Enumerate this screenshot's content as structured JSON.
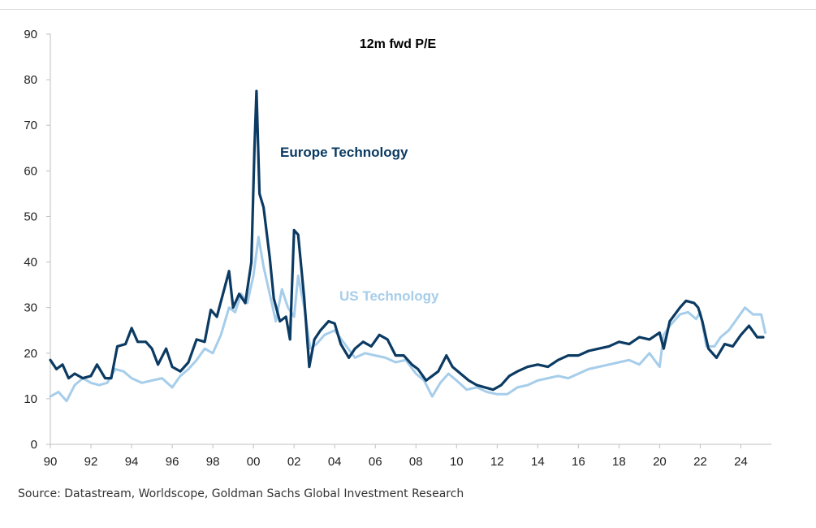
{
  "source_note": "Source: Datastream, Worldscope, Goldman Sachs Global Investment Research",
  "chart_data": {
    "type": "line",
    "title": "12m fwd P/E",
    "xlabel": "",
    "ylabel": "",
    "xlim": [
      1990,
      2025.5
    ],
    "ylim": [
      0,
      90
    ],
    "x_ticks": [
      1990,
      1992,
      1994,
      1996,
      1998,
      2000,
      2002,
      2004,
      2006,
      2008,
      2010,
      2012,
      2014,
      2016,
      2018,
      2020,
      2022,
      2024
    ],
    "x_tick_labels": [
      "90",
      "92",
      "94",
      "96",
      "98",
      "00",
      "02",
      "04",
      "06",
      "08",
      "10",
      "12",
      "14",
      "16",
      "18",
      "20",
      "22",
      "24"
    ],
    "y_ticks": [
      0,
      10,
      20,
      30,
      40,
      50,
      60,
      70,
      80,
      90
    ],
    "y_tick_labels": [
      "0",
      "10",
      "20",
      "30",
      "40",
      "50",
      "60",
      "70",
      "80",
      "90"
    ],
    "grid": false,
    "legend": "inline labels",
    "series": [
      {
        "name": "Europe Technology",
        "color": "#0b3a62",
        "x": [
          1990.0,
          1990.3,
          1990.6,
          1990.9,
          1991.2,
          1991.6,
          1992.0,
          1992.3,
          1992.7,
          1993.0,
          1993.3,
          1993.7,
          1994.0,
          1994.3,
          1994.7,
          1995.0,
          1995.3,
          1995.7,
          1996.0,
          1996.4,
          1996.8,
          1997.2,
          1997.6,
          1997.9,
          1998.2,
          1998.5,
          1998.8,
          1999.0,
          1999.3,
          1999.6,
          1999.9,
          2000.05,
          2000.15,
          2000.3,
          2000.5,
          2000.8,
          2001.0,
          2001.3,
          2001.6,
          2001.8,
          2002.0,
          2002.2,
          2002.5,
          2002.75,
          2003.0,
          2003.3,
          2003.7,
          2004.0,
          2004.3,
          2004.7,
          2005.0,
          2005.4,
          2005.8,
          2006.2,
          2006.6,
          2007.0,
          2007.4,
          2007.8,
          2008.1,
          2008.5,
          2008.8,
          2009.1,
          2009.5,
          2009.8,
          2010.2,
          2010.6,
          2011.0,
          2011.4,
          2011.8,
          2012.2,
          2012.6,
          2013.0,
          2013.5,
          2014.0,
          2014.5,
          2015.0,
          2015.5,
          2016.0,
          2016.5,
          2017.0,
          2017.5,
          2018.0,
          2018.5,
          2019.0,
          2019.5,
          2020.0,
          2020.2,
          2020.5,
          2021.0,
          2021.3,
          2021.7,
          2021.9,
          2022.1,
          2022.4,
          2022.8,
          2023.2,
          2023.6,
          2024.0,
          2024.4,
          2024.8,
          2025.1
        ],
        "values": [
          18.5,
          16.5,
          17.5,
          14.5,
          15.5,
          14.5,
          15.0,
          17.5,
          14.5,
          14.5,
          21.5,
          22.0,
          25.5,
          22.5,
          22.5,
          21.0,
          17.5,
          21.0,
          17.0,
          16.0,
          18.0,
          23.0,
          22.5,
          29.5,
          28.0,
          33.0,
          38.0,
          30.0,
          33.0,
          31.0,
          40.0,
          65.0,
          77.5,
          55.0,
          52.0,
          41.0,
          32.0,
          27.0,
          28.0,
          23.0,
          47.0,
          46.0,
          32.0,
          17.0,
          23.0,
          25.0,
          27.0,
          26.5,
          22.0,
          19.0,
          21.0,
          22.5,
          21.5,
          24.0,
          23.0,
          19.5,
          19.5,
          17.5,
          16.5,
          14.0,
          15.0,
          16.0,
          19.5,
          17.0,
          15.5,
          14.0,
          13.0,
          12.5,
          12.0,
          13.0,
          15.0,
          16.0,
          17.0,
          17.5,
          17.0,
          18.5,
          19.5,
          19.5,
          20.5,
          21.0,
          21.5,
          22.5,
          22.0,
          23.5,
          23.0,
          24.5,
          21.0,
          27.0,
          30.0,
          31.5,
          31.0,
          30.0,
          27.0,
          21.0,
          19.0,
          22.0,
          21.5,
          24.0,
          26.0,
          23.5,
          23.5
        ]
      },
      {
        "name": "US Technology",
        "color": "#a6cdea",
        "x": [
          1990.0,
          1990.4,
          1990.8,
          1991.2,
          1991.6,
          1992.0,
          1992.4,
          1992.8,
          1993.2,
          1993.6,
          1994.0,
          1994.5,
          1995.0,
          1995.5,
          1996.0,
          1996.4,
          1996.8,
          1997.2,
          1997.6,
          1998.0,
          1998.4,
          1998.8,
          1999.1,
          1999.4,
          1999.7,
          2000.0,
          2000.25,
          2000.5,
          2000.8,
          2001.1,
          2001.4,
          2001.7,
          2002.0,
          2002.2,
          2002.5,
          2002.8,
          2003.1,
          2003.5,
          2004.0,
          2004.5,
          2005.0,
          2005.5,
          2006.0,
          2006.5,
          2007.0,
          2007.5,
          2008.0,
          2008.4,
          2008.8,
          2009.2,
          2009.6,
          2010.0,
          2010.5,
          2011.0,
          2011.5,
          2012.0,
          2012.5,
          2013.0,
          2013.5,
          2014.0,
          2014.5,
          2015.0,
          2015.5,
          2016.0,
          2016.5,
          2017.0,
          2017.5,
          2018.0,
          2018.5,
          2019.0,
          2019.5,
          2020.0,
          2020.2,
          2020.5,
          2021.0,
          2021.4,
          2021.8,
          2022.0,
          2022.3,
          2022.7,
          2023.0,
          2023.4,
          2023.8,
          2024.2,
          2024.6,
          2025.0,
          2025.2
        ],
        "values": [
          10.5,
          11.5,
          9.5,
          13.0,
          14.5,
          13.5,
          13.0,
          13.5,
          16.5,
          16.0,
          14.5,
          13.5,
          14.0,
          14.5,
          12.5,
          15.0,
          16.5,
          18.5,
          21.0,
          20.0,
          24.0,
          30.0,
          29.0,
          33.0,
          31.0,
          37.0,
          45.5,
          39.0,
          33.0,
          27.0,
          34.0,
          30.0,
          28.0,
          37.0,
          30.0,
          21.0,
          22.0,
          24.0,
          25.0,
          22.0,
          19.0,
          20.0,
          19.5,
          19.0,
          18.0,
          18.5,
          15.5,
          14.0,
          10.5,
          13.5,
          15.5,
          14.0,
          12.0,
          12.5,
          11.5,
          11.0,
          11.0,
          12.5,
          13.0,
          14.0,
          14.5,
          15.0,
          14.5,
          15.5,
          16.5,
          17.0,
          17.5,
          18.0,
          18.5,
          17.5,
          20.0,
          17.0,
          24.0,
          26.0,
          28.5,
          29.0,
          27.5,
          29.0,
          21.5,
          21.5,
          23.5,
          25.0,
          27.5,
          30.0,
          28.5,
          28.5,
          24.5
        ]
      }
    ]
  }
}
